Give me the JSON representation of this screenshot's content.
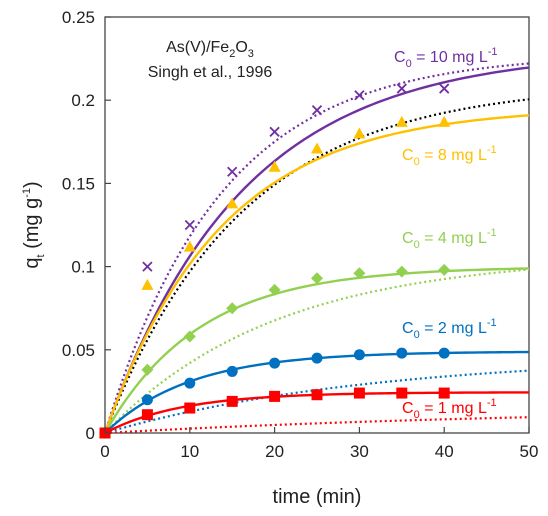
{
  "chart_data": {
    "type": "scatter",
    "annotation": [
      "As(V)/Fe",
      "2",
      "O",
      "3",
      "Singh et al., 1996"
    ],
    "xlabel": "time (min)",
    "ylabel": [
      "q",
      "t",
      " (mg g",
      "-1",
      ")"
    ],
    "xlim": [
      0,
      50
    ],
    "ylim": [
      0,
      0.25
    ],
    "x_ticks": [
      0,
      10,
      20,
      30,
      40,
      50
    ],
    "y_ticks": [
      0,
      0.05,
      0.1,
      0.15,
      0.2,
      0.25
    ],
    "x_tick_labels": [
      "0",
      "10",
      "20",
      "30",
      "40",
      "50"
    ],
    "y_tick_labels": [
      "0",
      "0.05",
      "0.1",
      "0.15",
      "0.2",
      "0.25"
    ],
    "grid": false,
    "series": [
      {
        "name": [
          "C",
          "0",
          " = 10 mg L",
          "-1"
        ],
        "color": "#7030A0",
        "marker": "x",
        "x": [
          0,
          5,
          10,
          15,
          20,
          25,
          30,
          35,
          40
        ],
        "y": [
          0,
          0.1,
          0.125,
          0.157,
          0.181,
          0.194,
          0.203,
          0.207,
          0.207
        ],
        "fit_solid": {
          "qe": 0.23,
          "k": 0.062
        },
        "fit_dotted": {
          "qe": 0.228,
          "k": 0.073
        }
      },
      {
        "name": [
          "C",
          "0",
          " = 8 mg L",
          "-1"
        ],
        "color": "#FFC000",
        "marker": "triangle",
        "x": [
          0,
          5,
          10,
          15,
          20,
          25,
          30,
          35,
          40
        ],
        "y": [
          0,
          0.089,
          0.112,
          0.138,
          0.16,
          0.171,
          0.18,
          0.187,
          0.187
        ],
        "fit_solid": {
          "qe": 0.196,
          "k": 0.073
        },
        "fit_dotted": {
          "qe": 0.21,
          "k": 0.062
        },
        "fit_dotted_color": "#000000"
      },
      {
        "name": [
          "C",
          "0",
          " = 4 mg L",
          "-1"
        ],
        "color": "#92D050",
        "marker": "diamond",
        "x": [
          0,
          5,
          10,
          15,
          20,
          25,
          30,
          35,
          40
        ],
        "y": [
          0,
          0.038,
          0.058,
          0.075,
          0.086,
          0.093,
          0.096,
          0.097,
          0.098
        ],
        "fit_solid": {
          "qe": 0.1,
          "k": 0.09
        },
        "fit_dotted": {
          "qe": 0.107,
          "k": 0.05
        }
      },
      {
        "name": [
          "C",
          "0",
          " = 2 mg L",
          "-1"
        ],
        "color": "#0070C0",
        "marker": "circle",
        "x": [
          0,
          5,
          10,
          15,
          20,
          25,
          30,
          35,
          40
        ],
        "y": [
          0,
          0.02,
          0.03,
          0.037,
          0.042,
          0.045,
          0.047,
          0.048,
          0.048
        ],
        "fit_solid": {
          "qe": 0.049,
          "k": 0.1
        },
        "fit_dotted": {
          "qe": 0.047,
          "k": 0.032
        }
      },
      {
        "name": [
          "C",
          "0",
          " = 1 mg L",
          "-1"
        ],
        "color": "#FF0000",
        "marker": "square",
        "x": [
          0,
          5,
          10,
          15,
          20,
          25,
          30,
          35,
          40
        ],
        "y": [
          0,
          0.011,
          0.015,
          0.019,
          0.022,
          0.023,
          0.024,
          0.024,
          0.024
        ],
        "fit_solid": {
          "qe": 0.0245,
          "k": 0.11
        },
        "fit_dotted": {
          "qe": 0.016,
          "k": 0.018
        }
      }
    ]
  }
}
